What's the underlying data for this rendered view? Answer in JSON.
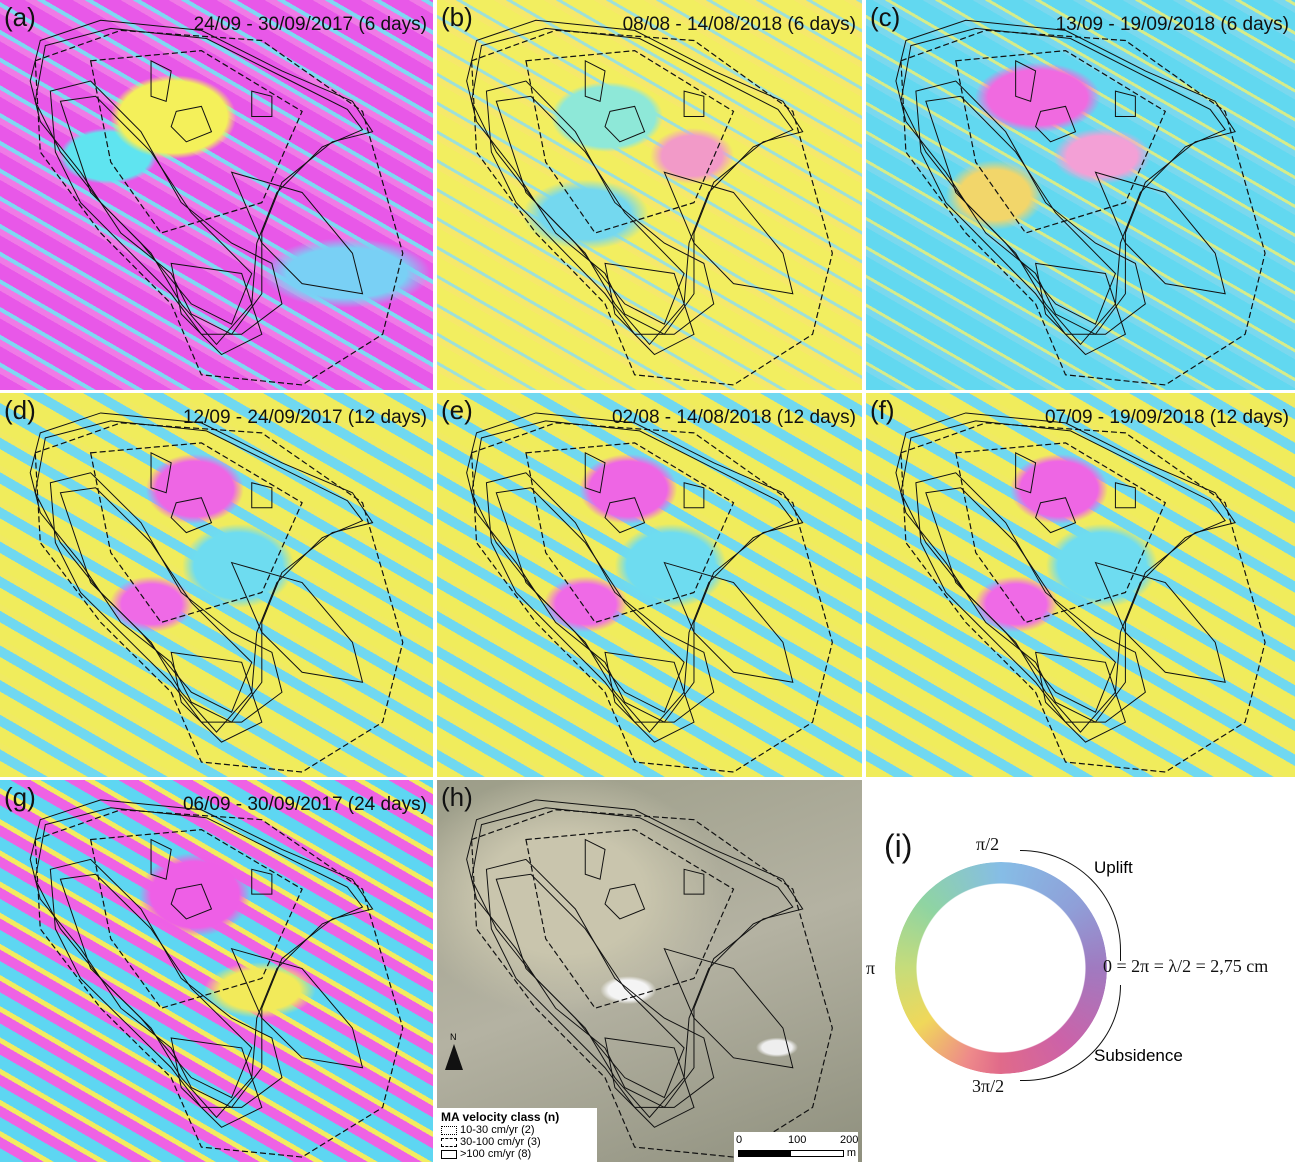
{
  "panels": [
    {
      "label": "(a)",
      "title": "24/09 - 30/09/2017 (6 days)"
    },
    {
      "label": "(b)",
      "title": "08/08 - 14/08/2018 (6 days)"
    },
    {
      "label": "(c)",
      "title": "13/09 - 19/09/2018 (6 days)"
    },
    {
      "label": "(d)",
      "title": "12/09 - 24/09/2017 (12 days)"
    },
    {
      "label": "(e)",
      "title": "02/08 - 14/08/2018 (12 days)"
    },
    {
      "label": "(f)",
      "title": "07/09 - 19/09/2018 (12 days)"
    },
    {
      "label": "(g)",
      "title": "06/09 - 30/09/2017 (24 days)"
    }
  ],
  "orthophoto": {
    "label": "(h)",
    "north": "N",
    "legend": {
      "title": "MA velocity class (n)",
      "items": [
        "10-30 cm/yr (2)",
        "30-100 cm/yr (3)",
        ">100 cm/yr (8)"
      ]
    },
    "scale": {
      "ticks": [
        "0",
        "100",
        "200"
      ],
      "unit": "m"
    }
  },
  "phase_wheel": {
    "label": "(i)",
    "top": "π/2",
    "left": "π",
    "bottom": "3π/2",
    "right": "0 = 2π = λ/2 = 2,75 cm",
    "uplift": "Uplift",
    "subsidence": "Subsidence"
  }
}
